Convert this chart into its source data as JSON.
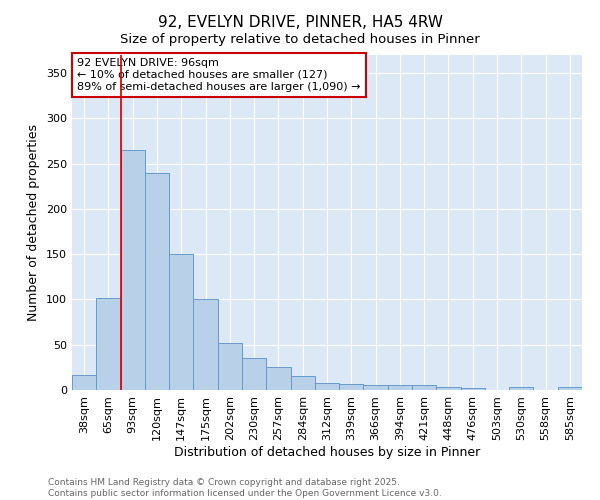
{
  "title": "92, EVELYN DRIVE, PINNER, HA5 4RW",
  "subtitle": "Size of property relative to detached houses in Pinner",
  "xlabel": "Distribution of detached houses by size in Pinner",
  "ylabel": "Number of detached properties",
  "categories": [
    "38sqm",
    "65sqm",
    "93sqm",
    "120sqm",
    "147sqm",
    "175sqm",
    "202sqm",
    "230sqm",
    "257sqm",
    "284sqm",
    "312sqm",
    "339sqm",
    "366sqm",
    "394sqm",
    "421sqm",
    "448sqm",
    "476sqm",
    "503sqm",
    "530sqm",
    "558sqm",
    "585sqm"
  ],
  "values": [
    17,
    102,
    265,
    240,
    150,
    100,
    52,
    35,
    25,
    15,
    8,
    7,
    5,
    5,
    5,
    3,
    2,
    0,
    3,
    0,
    3
  ],
  "bar_color": "#b8d0e8",
  "bar_edge_color": "#6699cc",
  "vline_color": "#cc0000",
  "annotation_text": "92 EVELYN DRIVE: 96sqm\n← 10% of detached houses are smaller (127)\n89% of semi-detached houses are larger (1,090) →",
  "annotation_box_color": "#ffffff",
  "annotation_box_edge_color": "#cc0000",
  "ylim": [
    0,
    370
  ],
  "yticks": [
    0,
    50,
    100,
    150,
    200,
    250,
    300,
    350
  ],
  "background_color": "#dce8f5",
  "footer_text": "Contains HM Land Registry data © Crown copyright and database right 2025.\nContains public sector information licensed under the Open Government Licence v3.0.",
  "title_fontsize": 11,
  "axis_label_fontsize": 9,
  "tick_fontsize": 8,
  "footer_fontsize": 6.5
}
